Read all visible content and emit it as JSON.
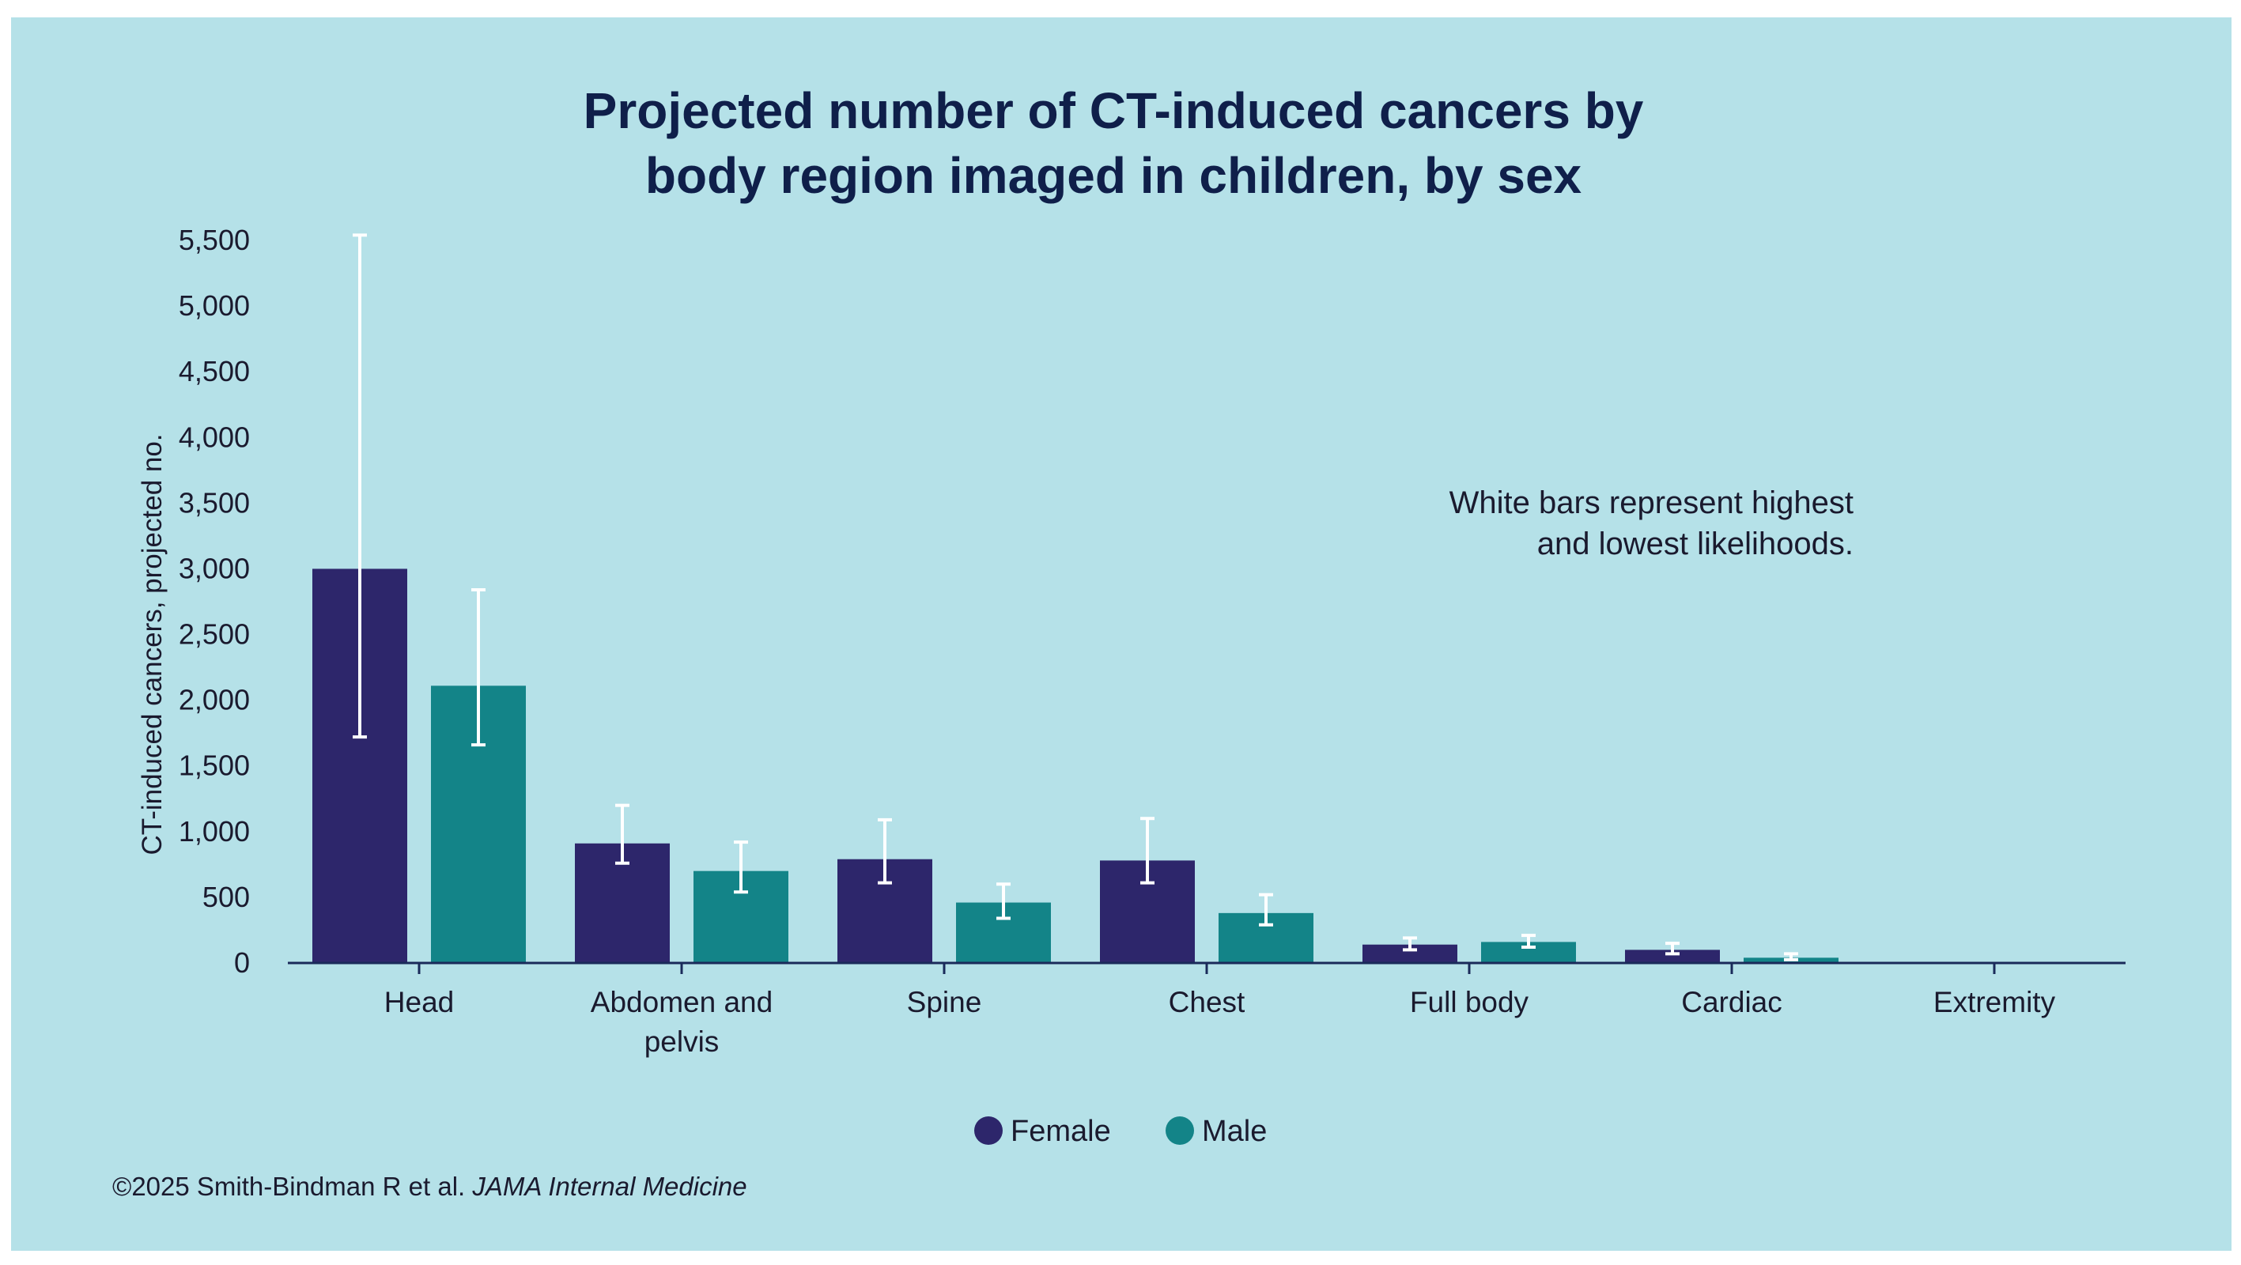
{
  "title_lines": [
    "Projected number of CT-induced cancers by",
    "body region imaged in children, by sex"
  ],
  "note_lines": [
    "White bars represent highest",
    "and lowest likelihoods."
  ],
  "source": {
    "prefix": "©2025 Smith-Bindman R et al. ",
    "journal": "JAMA Internal Medicine"
  },
  "colors": {
    "background": "#b5e1e8",
    "female": "#2d266b",
    "male": "#138488",
    "error_bar": "#ffffff",
    "axis": "#1a2a5a"
  },
  "chart_data": {
    "type": "bar",
    "title": "Projected number of CT-induced cancers by body region imaged in children, by sex",
    "xlabel": "",
    "ylabel": "CT-induced cancers, projected no.",
    "ylim": [
      0,
      5500
    ],
    "yticks": [
      0,
      500,
      1000,
      1500,
      2000,
      2500,
      3000,
      3500,
      4000,
      4500,
      5000,
      5500
    ],
    "ytick_labels": [
      "0",
      "500",
      "1,000",
      "1,500",
      "2,000",
      "2,500",
      "3,000",
      "3,500",
      "4,000",
      "4,500",
      "5,000",
      "5,500"
    ],
    "categories": [
      [
        "Head"
      ],
      [
        "Abdomen and",
        "pelvis"
      ],
      [
        "Spine"
      ],
      [
        "Chest"
      ],
      [
        "Full body"
      ],
      [
        "Cardiac"
      ],
      [
        "Extremity"
      ]
    ],
    "series": [
      {
        "name": "Female",
        "color": "#2d266b",
        "values": [
          3000,
          910,
          790,
          780,
          140,
          100,
          5
        ],
        "low": [
          1720,
          760,
          610,
          610,
          100,
          70,
          3
        ],
        "high": [
          5540,
          1200,
          1090,
          1100,
          190,
          150,
          8
        ]
      },
      {
        "name": "Male",
        "color": "#138488",
        "values": [
          2110,
          700,
          460,
          380,
          160,
          40,
          5
        ],
        "low": [
          1660,
          540,
          340,
          290,
          120,
          25,
          3
        ],
        "high": [
          2840,
          920,
          600,
          520,
          210,
          70,
          8
        ]
      }
    ],
    "legend": {
      "position": "bottom-center",
      "entries": [
        "Female",
        "Male"
      ]
    },
    "grid": false
  }
}
